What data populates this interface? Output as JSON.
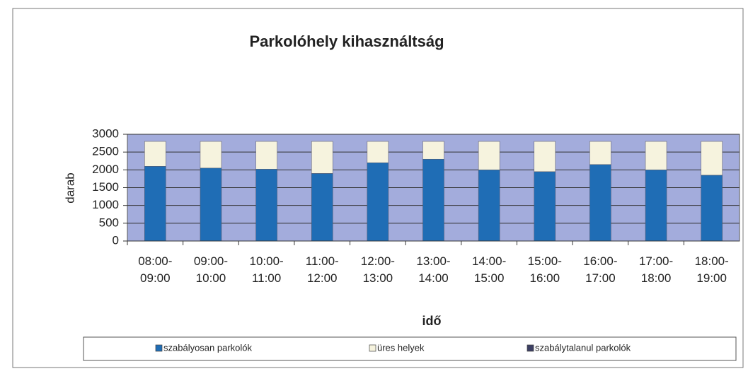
{
  "chart_data": {
    "type": "stacked_bar",
    "title": "Parkolóhely kihasználtság",
    "x_label": "idő",
    "y_label": "darab",
    "categories": [
      "08:00-09:00",
      "09:00-10:00",
      "10:00-11:00",
      "11:00-12:00",
      "12:00-13:00",
      "13:00-14:00",
      "14:00-15:00",
      "15:00-16:00",
      "16:00-17:00",
      "17:00-18:00",
      "18:00-19:00"
    ],
    "series": [
      {
        "name": "szabályosan parkolók",
        "color": "#1f6db5",
        "values": [
          2100,
          2050,
          2020,
          1900,
          2200,
          2300,
          2000,
          1950,
          2150,
          2000,
          1850
        ]
      },
      {
        "name": "üres helyek",
        "color": "#f6f3de",
        "values": [
          700,
          750,
          780,
          900,
          600,
          500,
          800,
          850,
          650,
          800,
          950
        ]
      },
      {
        "name": "szabálytalanul parkolók",
        "color": "#3c3f63",
        "values": [
          0,
          0,
          0,
          0,
          0,
          0,
          0,
          0,
          0,
          0,
          0
        ]
      }
    ],
    "ylim": [
      0,
      3000
    ],
    "yticks": [
      0,
      500,
      1000,
      1500,
      2000,
      2500,
      3000
    ],
    "grid": true
  }
}
